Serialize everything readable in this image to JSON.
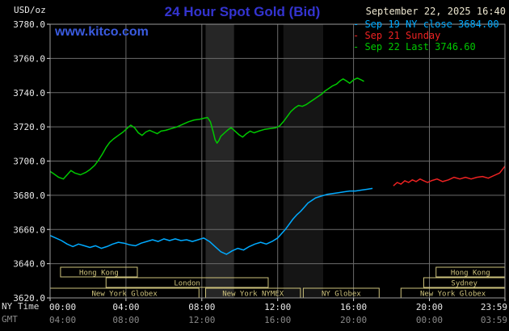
{
  "header": {
    "units": "USD/oz",
    "title": "24 Hour Spot Gold (Bid)",
    "datetime": "September 22, 2025 16:40",
    "watermark": "www.kitco.com"
  },
  "legend": {
    "items": [
      {
        "text": "- Sep 19 NY close 3684.00",
        "color": "#00aaff"
      },
      {
        "text": "- Sep 21 Sunday",
        "color": "#ee2222"
      },
      {
        "text": "- Sep 22 Last 3746.60",
        "color": "#00c800"
      }
    ]
  },
  "axes": {
    "ny_time_label": "NY Time",
    "gmt_label": "GMT",
    "x_ny_labels": [
      "00:00",
      "04:00",
      "08:00",
      "12:00",
      "16:00",
      "20:00",
      "23:59"
    ],
    "x_gmt_labels": [
      "04:00",
      "08:00",
      "12:00",
      "16:00",
      "20:00",
      "00:00",
      "03:59"
    ],
    "y_labels": [
      "3780.0",
      "3760.0",
      "3740.0",
      "3720.0",
      "3700.0",
      "3680.0",
      "3660.0",
      "3640.0",
      "3620.0"
    ]
  },
  "colors": {
    "grid": "#6b6b6b",
    "border": "#9a9a9a",
    "tick": "#d8d8d8",
    "axis_text": "#e8e8e8",
    "gmt_text": "#8a8a8a",
    "session": "#cdc27c"
  },
  "bands": [
    {
      "from": 8.2,
      "to": 9.7,
      "color": "#262626"
    },
    {
      "from": 12.3,
      "to": 14.4,
      "color": "#151515"
    }
  ],
  "sessions": [
    {
      "row": 0,
      "from": 0.55,
      "to": 4.6,
      "label": "Hong Kong"
    },
    {
      "row": 0,
      "from": 20.35,
      "to": 23.98,
      "label": "Hong Kong"
    },
    {
      "row": 1,
      "from": 2.95,
      "to": 11.5,
      "label": "London"
    },
    {
      "row": 1,
      "from": 19.7,
      "to": 23.98,
      "label": "Sydney"
    },
    {
      "row": 2,
      "from": 0.0,
      "to": 7.85,
      "label": "New York Globex"
    },
    {
      "row": 2,
      "from": 8.2,
      "to": 13.2,
      "label": "New York NYMEX"
    },
    {
      "row": 2,
      "from": 13.35,
      "to": 17.35,
      "label": "NY Globex"
    },
    {
      "row": 2,
      "from": 18.5,
      "to": 23.98,
      "label": "New York Globex"
    }
  ],
  "chart_data": {
    "type": "line",
    "title": "24 Hour Spot Gold (Bid)",
    "ylabel": "USD/oz",
    "x_unit": "hours, NY time",
    "xlim": [
      0,
      23.983
    ],
    "ylim": [
      3620,
      3780
    ],
    "y_tick_step": 20,
    "x_ticks_hours": [
      0,
      4,
      8,
      12,
      16,
      20,
      23.983
    ],
    "grid": true,
    "legend_position": "top-right",
    "series": [
      {
        "name": "Sep 19 NY close",
        "close_value": 3684.0,
        "color": "#00aaff",
        "points": [
          [
            0,
            3656.5
          ],
          [
            0.3,
            3655
          ],
          [
            0.6,
            3653.5
          ],
          [
            0.9,
            3651.5
          ],
          [
            1.2,
            3650
          ],
          [
            1.5,
            3651.5
          ],
          [
            1.8,
            3650.5
          ],
          [
            2.1,
            3649.5
          ],
          [
            2.4,
            3650.5
          ],
          [
            2.7,
            3649
          ],
          [
            3,
            3650
          ],
          [
            3.3,
            3651.5
          ],
          [
            3.6,
            3652.5
          ],
          [
            3.9,
            3652
          ],
          [
            4.2,
            3651
          ],
          [
            4.5,
            3650.5
          ],
          [
            4.8,
            3652
          ],
          [
            5.1,
            3653
          ],
          [
            5.4,
            3654
          ],
          [
            5.7,
            3653
          ],
          [
            6,
            3654.5
          ],
          [
            6.3,
            3653.5
          ],
          [
            6.6,
            3654.5
          ],
          [
            6.9,
            3653.5
          ],
          [
            7.2,
            3654
          ],
          [
            7.5,
            3653
          ],
          [
            7.8,
            3654
          ],
          [
            8.1,
            3655
          ],
          [
            8.4,
            3653
          ],
          [
            8.7,
            3650
          ],
          [
            9,
            3647
          ],
          [
            9.3,
            3645.5
          ],
          [
            9.6,
            3647.5
          ],
          [
            9.9,
            3649
          ],
          [
            10.2,
            3648
          ],
          [
            10.5,
            3650
          ],
          [
            10.8,
            3651.5
          ],
          [
            11.1,
            3652.5
          ],
          [
            11.4,
            3651.5
          ],
          [
            11.7,
            3653
          ],
          [
            12,
            3655
          ],
          [
            12.2,
            3657.5
          ],
          [
            12.4,
            3660
          ],
          [
            12.6,
            3663
          ],
          [
            12.8,
            3666
          ],
          [
            13,
            3668.5
          ],
          [
            13.2,
            3670.5
          ],
          [
            13.4,
            3673
          ],
          [
            13.6,
            3675.5
          ],
          [
            13.8,
            3677
          ],
          [
            14,
            3678.5
          ],
          [
            14.3,
            3679.5
          ],
          [
            14.6,
            3680.5
          ],
          [
            14.9,
            3681
          ],
          [
            15.2,
            3681.5
          ],
          [
            15.5,
            3682
          ],
          [
            15.8,
            3682.5
          ],
          [
            16.1,
            3682.5
          ],
          [
            16.4,
            3683
          ],
          [
            16.7,
            3683.5
          ],
          [
            17,
            3684
          ]
        ]
      },
      {
        "name": "Sep 21 Sunday",
        "color": "#ee2222",
        "points": [
          [
            18.1,
            3685.5
          ],
          [
            18.3,
            3687.5
          ],
          [
            18.5,
            3686.5
          ],
          [
            18.7,
            3688.5
          ],
          [
            18.9,
            3687.5
          ],
          [
            19.1,
            3689
          ],
          [
            19.3,
            3688
          ],
          [
            19.5,
            3689.5
          ],
          [
            19.7,
            3688.5
          ],
          [
            19.9,
            3687.5
          ],
          [
            20.1,
            3688.5
          ],
          [
            20.4,
            3689.5
          ],
          [
            20.7,
            3688
          ],
          [
            21,
            3689
          ],
          [
            21.3,
            3690.5
          ],
          [
            21.6,
            3689.5
          ],
          [
            21.9,
            3690.5
          ],
          [
            22.2,
            3689.5
          ],
          [
            22.5,
            3690.5
          ],
          [
            22.8,
            3691
          ],
          [
            23.1,
            3690
          ],
          [
            23.4,
            3691.5
          ],
          [
            23.7,
            3693
          ],
          [
            23.98,
            3697
          ]
        ]
      },
      {
        "name": "Sep 22 Last",
        "last_value": 3746.6,
        "color": "#00c800",
        "points": [
          [
            0,
            3694
          ],
          [
            0.2,
            3692.5
          ],
          [
            0.45,
            3690.5
          ],
          [
            0.7,
            3689.5
          ],
          [
            0.9,
            3692
          ],
          [
            1.1,
            3694.5
          ],
          [
            1.3,
            3693
          ],
          [
            1.6,
            3692
          ],
          [
            1.9,
            3693.5
          ],
          [
            2.1,
            3695
          ],
          [
            2.35,
            3697.5
          ],
          [
            2.55,
            3700.5
          ],
          [
            2.75,
            3704
          ],
          [
            2.95,
            3708
          ],
          [
            3.15,
            3711
          ],
          [
            3.35,
            3713
          ],
          [
            3.6,
            3715
          ],
          [
            3.85,
            3717
          ],
          [
            4.05,
            3719
          ],
          [
            4.25,
            3721
          ],
          [
            4.45,
            3719.5
          ],
          [
            4.65,
            3716.5
          ],
          [
            4.85,
            3715
          ],
          [
            5.05,
            3717
          ],
          [
            5.25,
            3718
          ],
          [
            5.45,
            3717
          ],
          [
            5.65,
            3716
          ],
          [
            5.85,
            3717.5
          ],
          [
            6.1,
            3718
          ],
          [
            6.4,
            3719
          ],
          [
            6.7,
            3720
          ],
          [
            7,
            3721.5
          ],
          [
            7.3,
            3723
          ],
          [
            7.6,
            3724
          ],
          [
            7.9,
            3724.5
          ],
          [
            8.1,
            3725
          ],
          [
            8.3,
            3725.5
          ],
          [
            8.45,
            3723
          ],
          [
            8.6,
            3717
          ],
          [
            8.7,
            3712.5
          ],
          [
            8.8,
            3710.5
          ],
          [
            8.9,
            3712
          ],
          [
            9,
            3714.5
          ],
          [
            9.2,
            3716.5
          ],
          [
            9.4,
            3718.5
          ],
          [
            9.55,
            3719.5
          ],
          [
            9.75,
            3717.5
          ],
          [
            9.95,
            3715.5
          ],
          [
            10.15,
            3714
          ],
          [
            10.35,
            3716
          ],
          [
            10.55,
            3717.5
          ],
          [
            10.75,
            3716.5
          ],
          [
            11,
            3717.5
          ],
          [
            11.3,
            3718.5
          ],
          [
            11.6,
            3719
          ],
          [
            11.9,
            3719.5
          ],
          [
            12.1,
            3720.5
          ],
          [
            12.3,
            3723
          ],
          [
            12.5,
            3726
          ],
          [
            12.7,
            3729
          ],
          [
            12.9,
            3731
          ],
          [
            13.1,
            3732.5
          ],
          [
            13.3,
            3732
          ],
          [
            13.5,
            3733
          ],
          [
            13.7,
            3734.5
          ],
          [
            13.9,
            3736
          ],
          [
            14.1,
            3737.5
          ],
          [
            14.3,
            3739
          ],
          [
            14.5,
            3741
          ],
          [
            14.7,
            3742.5
          ],
          [
            14.9,
            3744
          ],
          [
            15.1,
            3745
          ],
          [
            15.3,
            3747
          ],
          [
            15.45,
            3748
          ],
          [
            15.6,
            3747
          ],
          [
            15.8,
            3745.5
          ],
          [
            16,
            3747.5
          ],
          [
            16.2,
            3748.5
          ],
          [
            16.4,
            3747.5
          ],
          [
            16.55,
            3746.6
          ]
        ]
      }
    ]
  }
}
